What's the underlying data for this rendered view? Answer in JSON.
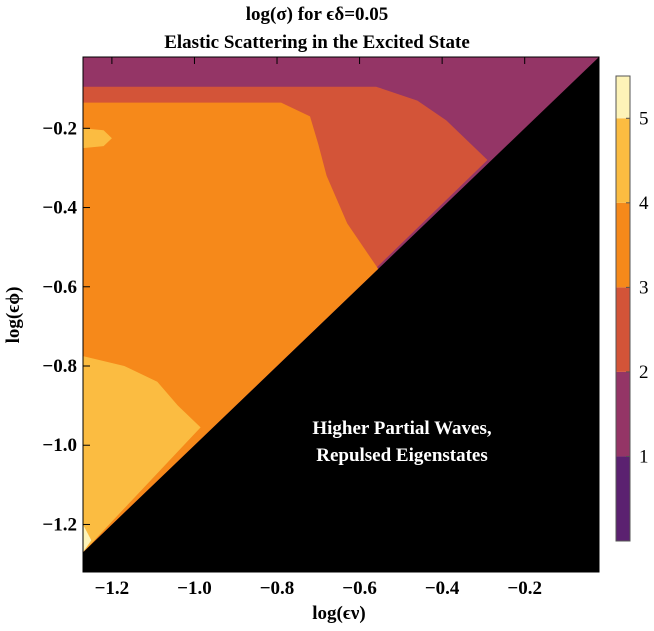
{
  "chart_data": {
    "type": "contour",
    "title_line1": "log(σ) for ϵδ=0.05",
    "title_line2": "Elastic Scattering in the Excited State",
    "xlabel": "log(ϵν)",
    "ylabel": "log(ϵϕ)",
    "xlim": [
      -1.27,
      -0.02
    ],
    "ylim": [
      -1.32,
      -0.02
    ],
    "x_ticks": [
      {
        "value": -1.2,
        "label": "−1.2"
      },
      {
        "value": -1.0,
        "label": "−1.0"
      },
      {
        "value": -0.8,
        "label": "−0.8"
      },
      {
        "value": -0.6,
        "label": "−0.6"
      },
      {
        "value": -0.4,
        "label": "−0.4"
      },
      {
        "value": -0.2,
        "label": "−0.2"
      }
    ],
    "y_ticks": [
      {
        "value": -0.2,
        "label": "−0.2"
      },
      {
        "value": -0.4,
        "label": "−0.4"
      },
      {
        "value": -0.6,
        "label": "−0.6"
      },
      {
        "value": -0.8,
        "label": "−0.8"
      },
      {
        "value": -1.0,
        "label": "−1.0"
      },
      {
        "value": -1.2,
        "label": "−1.2"
      }
    ],
    "masked_region": {
      "description": "log(ϵϕ) < log(ϵν)",
      "color": "#000000",
      "annotation_line1": "Higher Partial Waves,",
      "annotation_line2": "Repulsed Eigenstates"
    },
    "levels": [
      {
        "range": [
          0,
          1
        ],
        "color": "#5b2170"
      },
      {
        "range": [
          1,
          2
        ],
        "color": "#943566"
      },
      {
        "range": [
          2,
          3
        ],
        "color": "#d35438"
      },
      {
        "range": [
          3,
          4
        ],
        "color": "#f6891a"
      },
      {
        "range": [
          4,
          5
        ],
        "color": "#fbbc41"
      },
      {
        "range": [
          5,
          5.5
        ],
        "color": "#fdf3b8"
      }
    ],
    "regions": [
      {
        "level": 1,
        "boundary": [
          [
            -1.27,
            -0.02
          ],
          [
            -0.02,
            -0.02
          ],
          [
            -1.27,
            -1.27
          ]
        ]
      },
      {
        "level": 2,
        "boundary": [
          [
            -1.27,
            -0.095
          ],
          [
            -0.56,
            -0.095
          ],
          [
            -0.46,
            -0.13
          ],
          [
            -0.39,
            -0.18
          ],
          [
            -0.29,
            -0.28
          ],
          [
            -1.27,
            -1.27
          ]
        ]
      },
      {
        "level": 3,
        "boundary": [
          [
            -1.27,
            -0.135
          ],
          [
            -0.79,
            -0.135
          ],
          [
            -0.72,
            -0.17
          ],
          [
            -0.7,
            -0.24
          ],
          [
            -0.68,
            -0.32
          ],
          [
            -0.63,
            -0.44
          ],
          [
            -0.555,
            -0.555
          ],
          [
            -1.27,
            -1.27
          ]
        ]
      },
      {
        "level": 4,
        "boundary": [
          [
            -1.27,
            -0.775
          ],
          [
            -1.17,
            -0.8
          ],
          [
            -1.09,
            -0.84
          ],
          [
            -1.04,
            -0.9
          ],
          [
            -0.985,
            -0.955
          ],
          [
            -1.27,
            -1.27
          ]
        ]
      },
      {
        "level": 4,
        "boundary": [
          [
            -1.27,
            -0.2
          ],
          [
            -1.22,
            -0.205
          ],
          [
            -1.2,
            -0.225
          ],
          [
            -1.22,
            -0.245
          ],
          [
            -1.27,
            -0.25
          ]
        ]
      },
      {
        "level": 5,
        "boundary": [
          [
            -1.27,
            -1.2
          ],
          [
            -1.25,
            -1.24
          ],
          [
            -1.27,
            -1.27
          ]
        ]
      }
    ],
    "colorbar": {
      "min": 0,
      "max": 5.5,
      "ticks": [
        {
          "value": 1,
          "label": "1"
        },
        {
          "value": 2,
          "label": "2"
        },
        {
          "value": 3,
          "label": "3"
        },
        {
          "value": 4,
          "label": "4"
        },
        {
          "value": 5,
          "label": "5"
        }
      ]
    }
  }
}
